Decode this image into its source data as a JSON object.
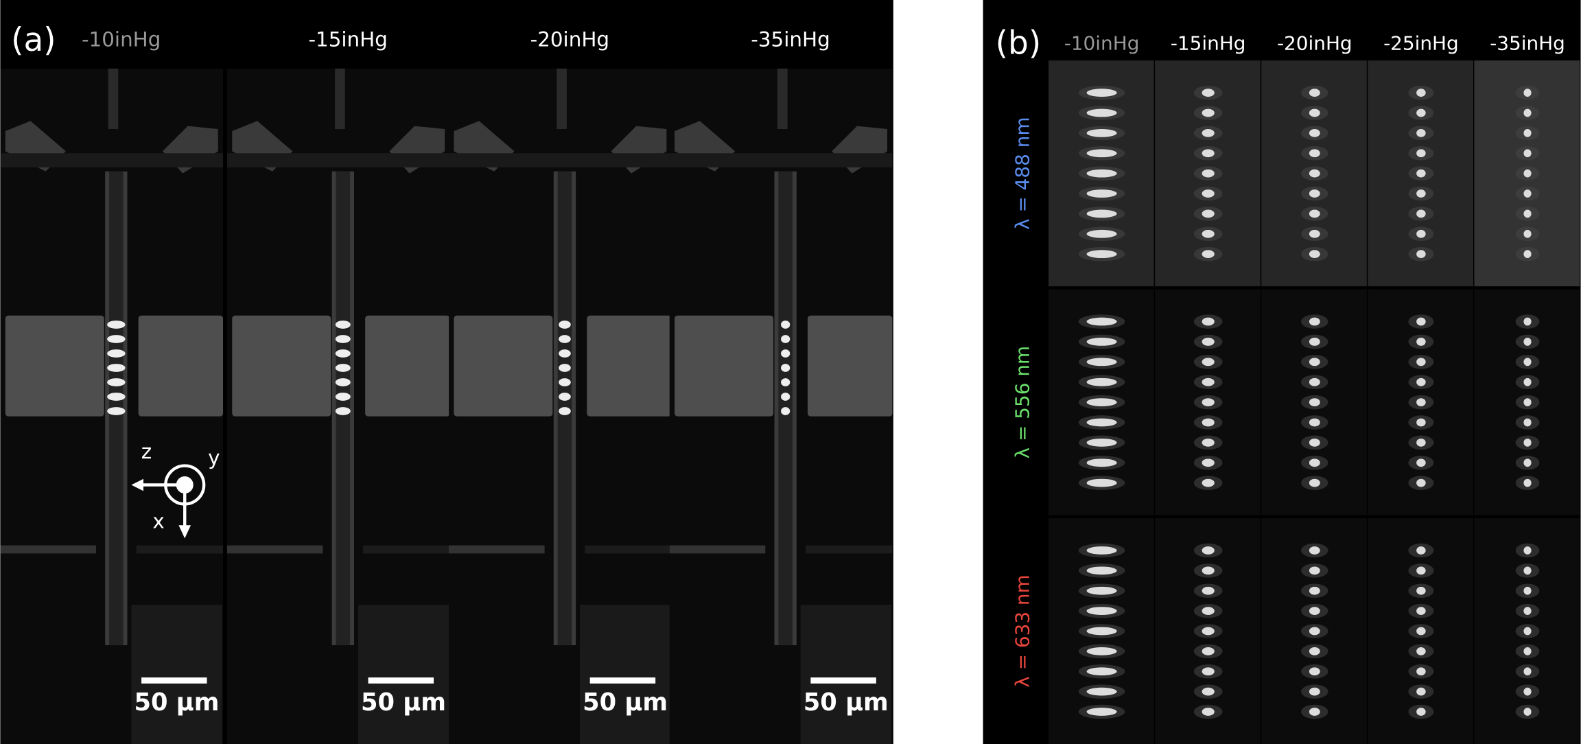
{
  "panel_a": {
    "label": "(a)",
    "columns": [
      "-10inHg",
      "-15inHg",
      "-20inHg",
      "-35inHg"
    ],
    "scale_bars": [
      "50 µm",
      "50 µm",
      "50 µm",
      "50 µm"
    ],
    "axes": {
      "z": "z",
      "y": "y",
      "x": "x"
    }
  },
  "panel_b": {
    "label": "(b)",
    "columns": [
      "-10inHg",
      "-15inHg",
      "-20inHg",
      "-25inHg",
      "-35inHg"
    ],
    "rows": [
      "λ = 488 nm",
      "λ = 556 nm",
      "λ = 633 nm"
    ]
  }
}
